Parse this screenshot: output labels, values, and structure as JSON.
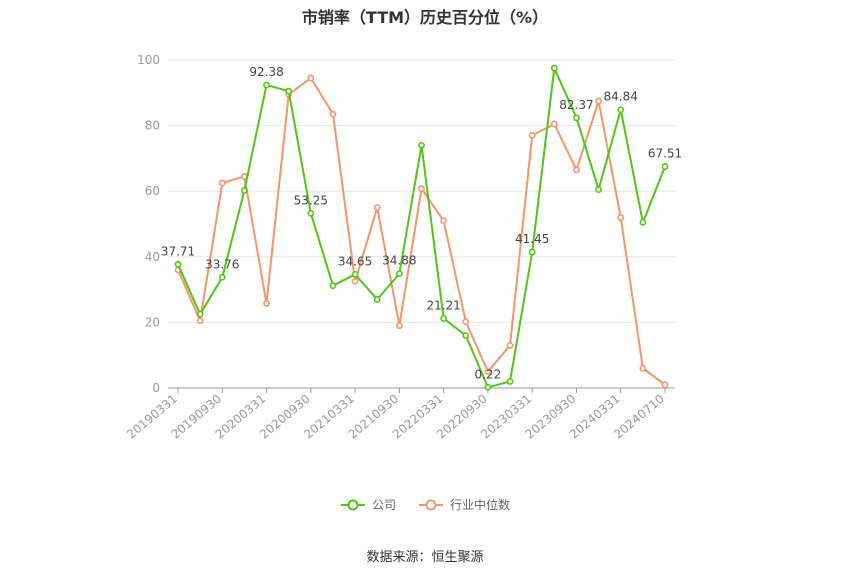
{
  "title": "市销率（TTM）历史百分位（%）",
  "source": "数据来源：恒生聚源",
  "chart_data": {
    "type": "line",
    "title": "市销率（TTM）历史百分位（%）",
    "ylim": [
      0,
      100
    ],
    "yticks": [
      0,
      20,
      40,
      60,
      80,
      100
    ],
    "grid": true,
    "legend_position": "bottom",
    "x_tick_labels": [
      "20190331",
      "20190930",
      "20200331",
      "20200930",
      "20210331",
      "20210930",
      "20220331",
      "20220930",
      "20230331",
      "20230930",
      "20240331",
      "20240710"
    ],
    "series": [
      {
        "name": "公司",
        "color": "#52c41a",
        "values": [
          37.71,
          22.5,
          33.76,
          60.2,
          92.38,
          90.5,
          53.25,
          31.2,
          34.65,
          27.0,
          34.88,
          74.0,
          21.21,
          16.0,
          0.22,
          2.0,
          41.45,
          97.5,
          82.37,
          60.5,
          84.84,
          50.5,
          67.51
        ],
        "labels": [
          "37.71",
          "",
          "33.76",
          "",
          "92.38",
          "",
          "53.25",
          "",
          "34.65",
          "",
          "34.88",
          "",
          "21.21",
          "",
          "0.22",
          "",
          "41.45",
          "",
          "82.37",
          "",
          "84.84",
          "",
          "67.51"
        ]
      },
      {
        "name": "行业中位数",
        "color": "#f4956a",
        "values": [
          36.0,
          20.5,
          62.5,
          64.5,
          25.8,
          89.5,
          94.5,
          83.5,
          32.5,
          55.0,
          19.0,
          60.8,
          51.0,
          20.2,
          5.0,
          13.0,
          77.0,
          80.5,
          66.5,
          87.5,
          52.0,
          6.0,
          1.0
        ]
      }
    ]
  }
}
